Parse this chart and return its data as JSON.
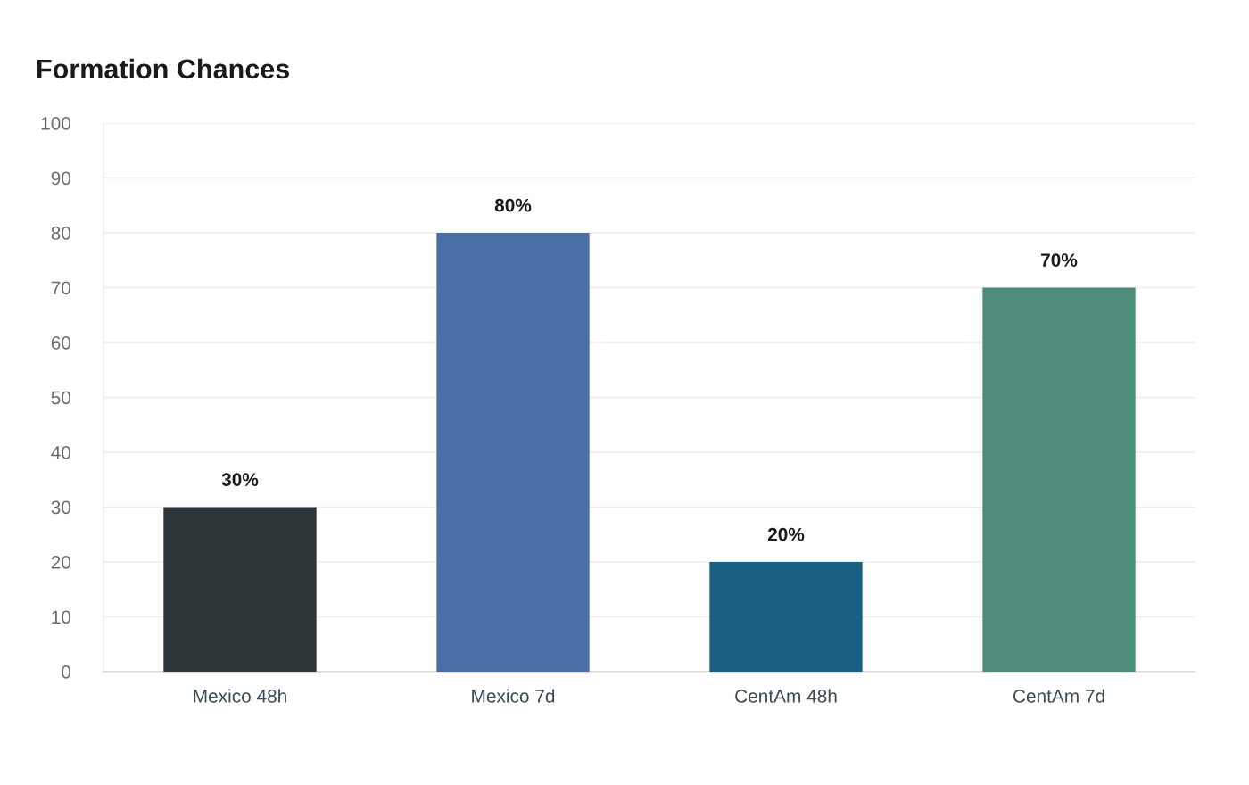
{
  "chart_data": {
    "type": "bar",
    "title": "Formation Chances",
    "categories": [
      "Mexico 48h",
      "Mexico 7d",
      "CentAm 48h",
      "CentAm 7d"
    ],
    "values": [
      30,
      80,
      20,
      70
    ],
    "colors": [
      "#2e3538",
      "#4a6fa5",
      "#186185",
      "#4d8b7a"
    ],
    "value_labels": [
      "30%",
      "80%",
      "20%",
      "70%"
    ],
    "ylim": [
      0,
      100
    ],
    "yticks": [
      0,
      10,
      20,
      30,
      40,
      50,
      60,
      70,
      80,
      90,
      100
    ],
    "grid": "y"
  }
}
